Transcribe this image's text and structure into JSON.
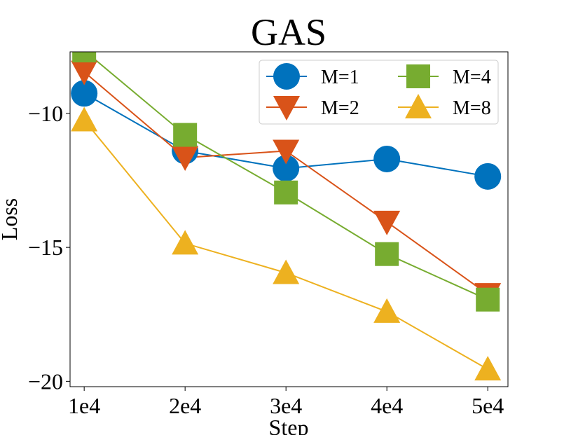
{
  "chart_data": {
    "type": "line",
    "title": "GAS",
    "xlabel": "Step",
    "ylabel": "Loss",
    "categories": [
      "1e4",
      "2e4",
      "3e4",
      "4e4",
      "5e4"
    ],
    "x": [
      1,
      2,
      3,
      4,
      5
    ],
    "xlim": [
      0.86,
      5.2
    ],
    "ylim": [
      -20.2,
      -7.7
    ],
    "yticks": [
      -10,
      -15,
      -20
    ],
    "ytick_labels": [
      "−10",
      "−15",
      "−20"
    ],
    "grid": false,
    "legend_position": "top-right",
    "legend_columns": 2,
    "series": [
      {
        "name": "M=1",
        "color": "#0072BD",
        "marker": "circle",
        "values": [
          -9.25,
          -11.4,
          -12.05,
          -11.7,
          -12.35
        ]
      },
      {
        "name": "M=2",
        "color": "#D95319",
        "marker": "triangle-down",
        "values": [
          -8.45,
          -11.65,
          -11.4,
          -14.05,
          -16.75
        ]
      },
      {
        "name": "M=4",
        "color": "#77AC30",
        "marker": "square",
        "values": [
          -7.65,
          -10.8,
          -12.95,
          -15.25,
          -16.95
        ]
      },
      {
        "name": "M=8",
        "color": "#EDB120",
        "marker": "triangle-up",
        "values": [
          -10.25,
          -14.85,
          -15.95,
          -17.4,
          -19.55
        ]
      }
    ]
  }
}
